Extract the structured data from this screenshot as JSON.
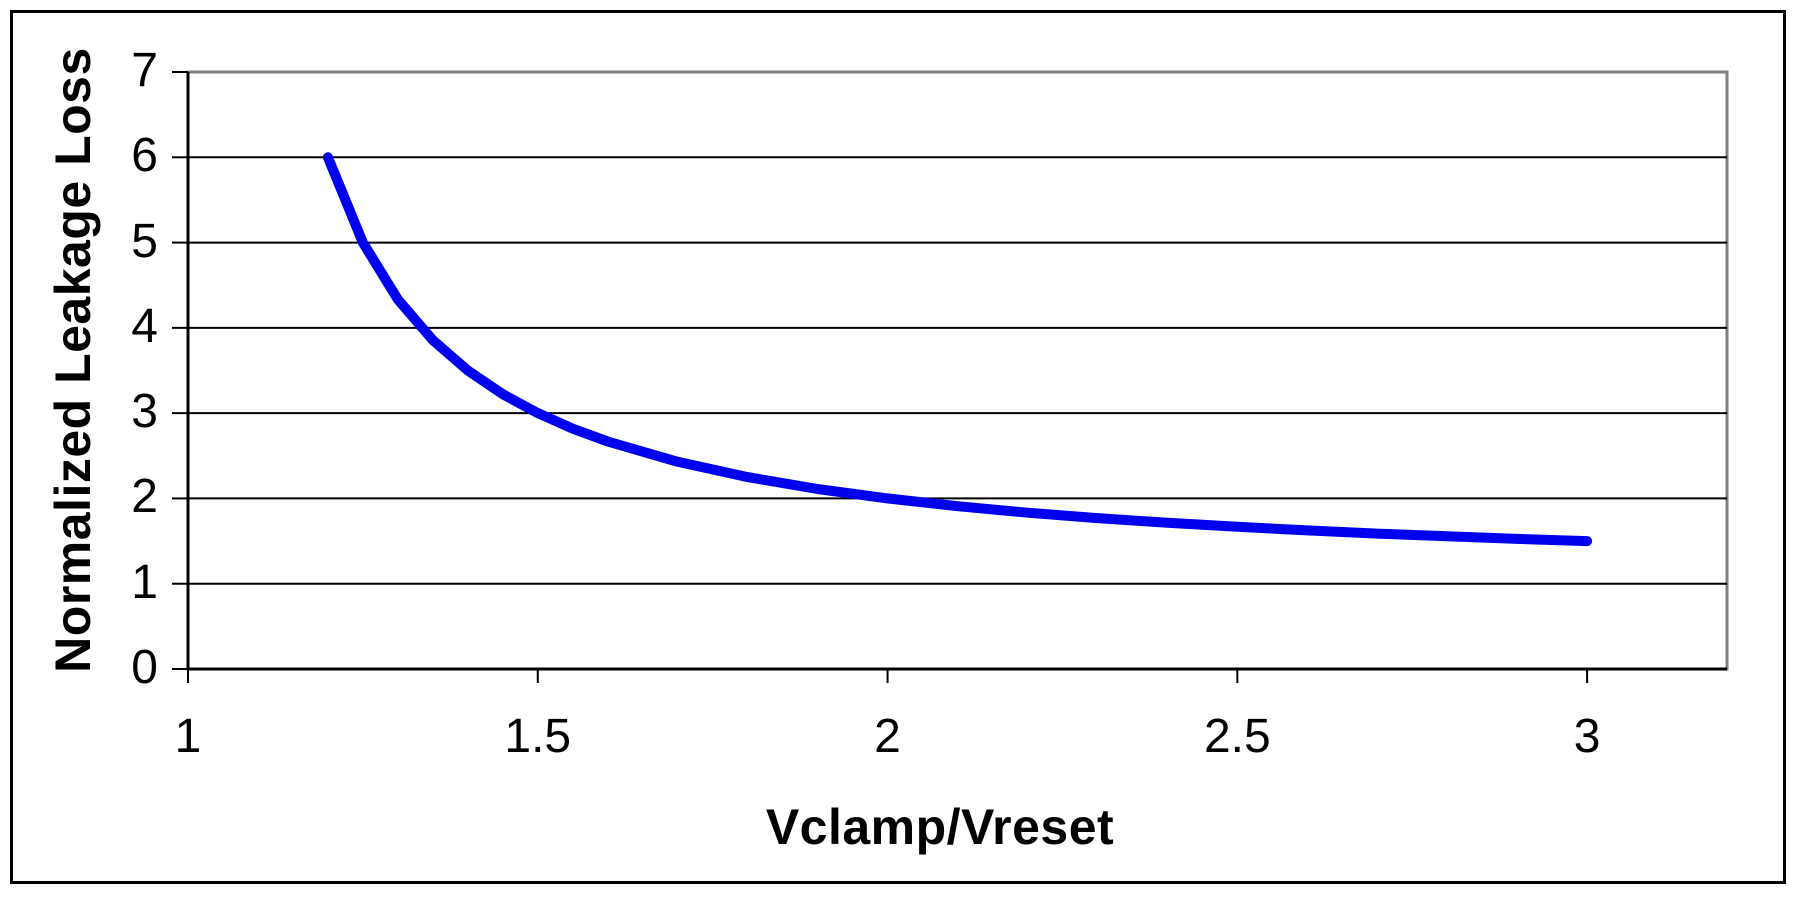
{
  "chart_data": {
    "type": "line",
    "title": "",
    "xlabel": "Vclamp/Vreset",
    "ylabel": "Normalized Leakage Loss",
    "x": [
      1.2,
      1.25,
      1.3,
      1.35,
      1.4,
      1.45,
      1.5,
      1.55,
      1.6,
      1.7,
      1.8,
      1.9,
      2.0,
      2.1,
      2.2,
      2.3,
      2.4,
      2.5,
      2.6,
      2.7,
      2.8,
      2.9,
      3.0
    ],
    "y": [
      6.0,
      5.0,
      4.333,
      3.857,
      3.5,
      3.222,
      3.0,
      2.818,
      2.667,
      2.429,
      2.25,
      2.111,
      2.0,
      1.909,
      1.833,
      1.769,
      1.714,
      1.667,
      1.625,
      1.588,
      1.556,
      1.526,
      1.5
    ],
    "x_tick_values": [
      1,
      1.5,
      2,
      2.5,
      3
    ],
    "x_tick_labels": [
      "1",
      "1.5",
      "2",
      "2.5",
      "3"
    ],
    "y_tick_values": [
      0,
      1,
      2,
      3,
      4,
      5,
      6,
      7
    ],
    "y_tick_labels": [
      "0",
      "1",
      "2",
      "3",
      "4",
      "5",
      "6",
      "7"
    ],
    "xlim": [
      1,
      3.2
    ],
    "ylim": [
      0,
      7
    ],
    "grid": "horizontal-only",
    "legend": "none",
    "styles": {
      "line_color": "#0000EE",
      "line_width": 10,
      "grid_color": "#000000",
      "axis_color": "#000000",
      "plot_border_color": "#808080",
      "outer_border_color": "#000000",
      "background": "#FFFFFF"
    }
  }
}
